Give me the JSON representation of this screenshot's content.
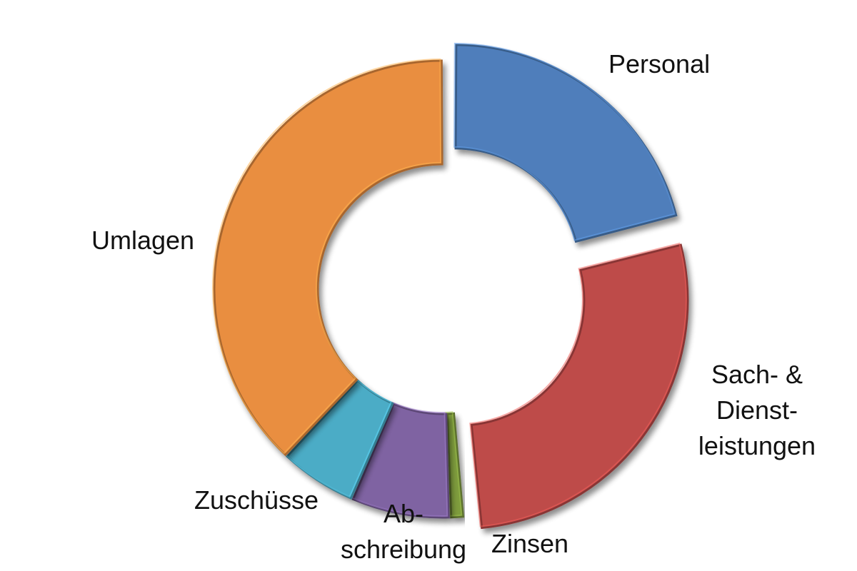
{
  "chart_data": {
    "type": "pie",
    "variant": "donut-exploded",
    "title": "",
    "legend": "none",
    "slices": [
      {
        "name": "Personal",
        "value": 21.0,
        "color": "#4F7EBB",
        "exploded": true,
        "label_lines": [
          "Personal"
        ]
      },
      {
        "name": "Sach- & Dienstleistungen",
        "value": 27.5,
        "color": "#BE4B48",
        "exploded": true,
        "label_lines": [
          "Sach- &",
          "Dienst-",
          "leistungen"
        ]
      },
      {
        "name": "Zinsen",
        "value": 1.0,
        "color": "#7E9C3E",
        "exploded": false,
        "label_lines": [
          "Zinsen"
        ]
      },
      {
        "name": "Abschreibung",
        "value": 7.0,
        "color": "#7F63A2",
        "exploded": false,
        "label_lines": [
          "Ab-",
          "schreibung"
        ]
      },
      {
        "name": "Zuschüsse",
        "value": 5.5,
        "color": "#4BACC6",
        "exploded": false,
        "label_lines": [
          "Zuschüsse"
        ]
      },
      {
        "name": "Umlagen",
        "value": 38.0,
        "color": "#E98E40",
        "exploded": false,
        "label_lines": [
          "Umlagen"
        ]
      }
    ]
  }
}
